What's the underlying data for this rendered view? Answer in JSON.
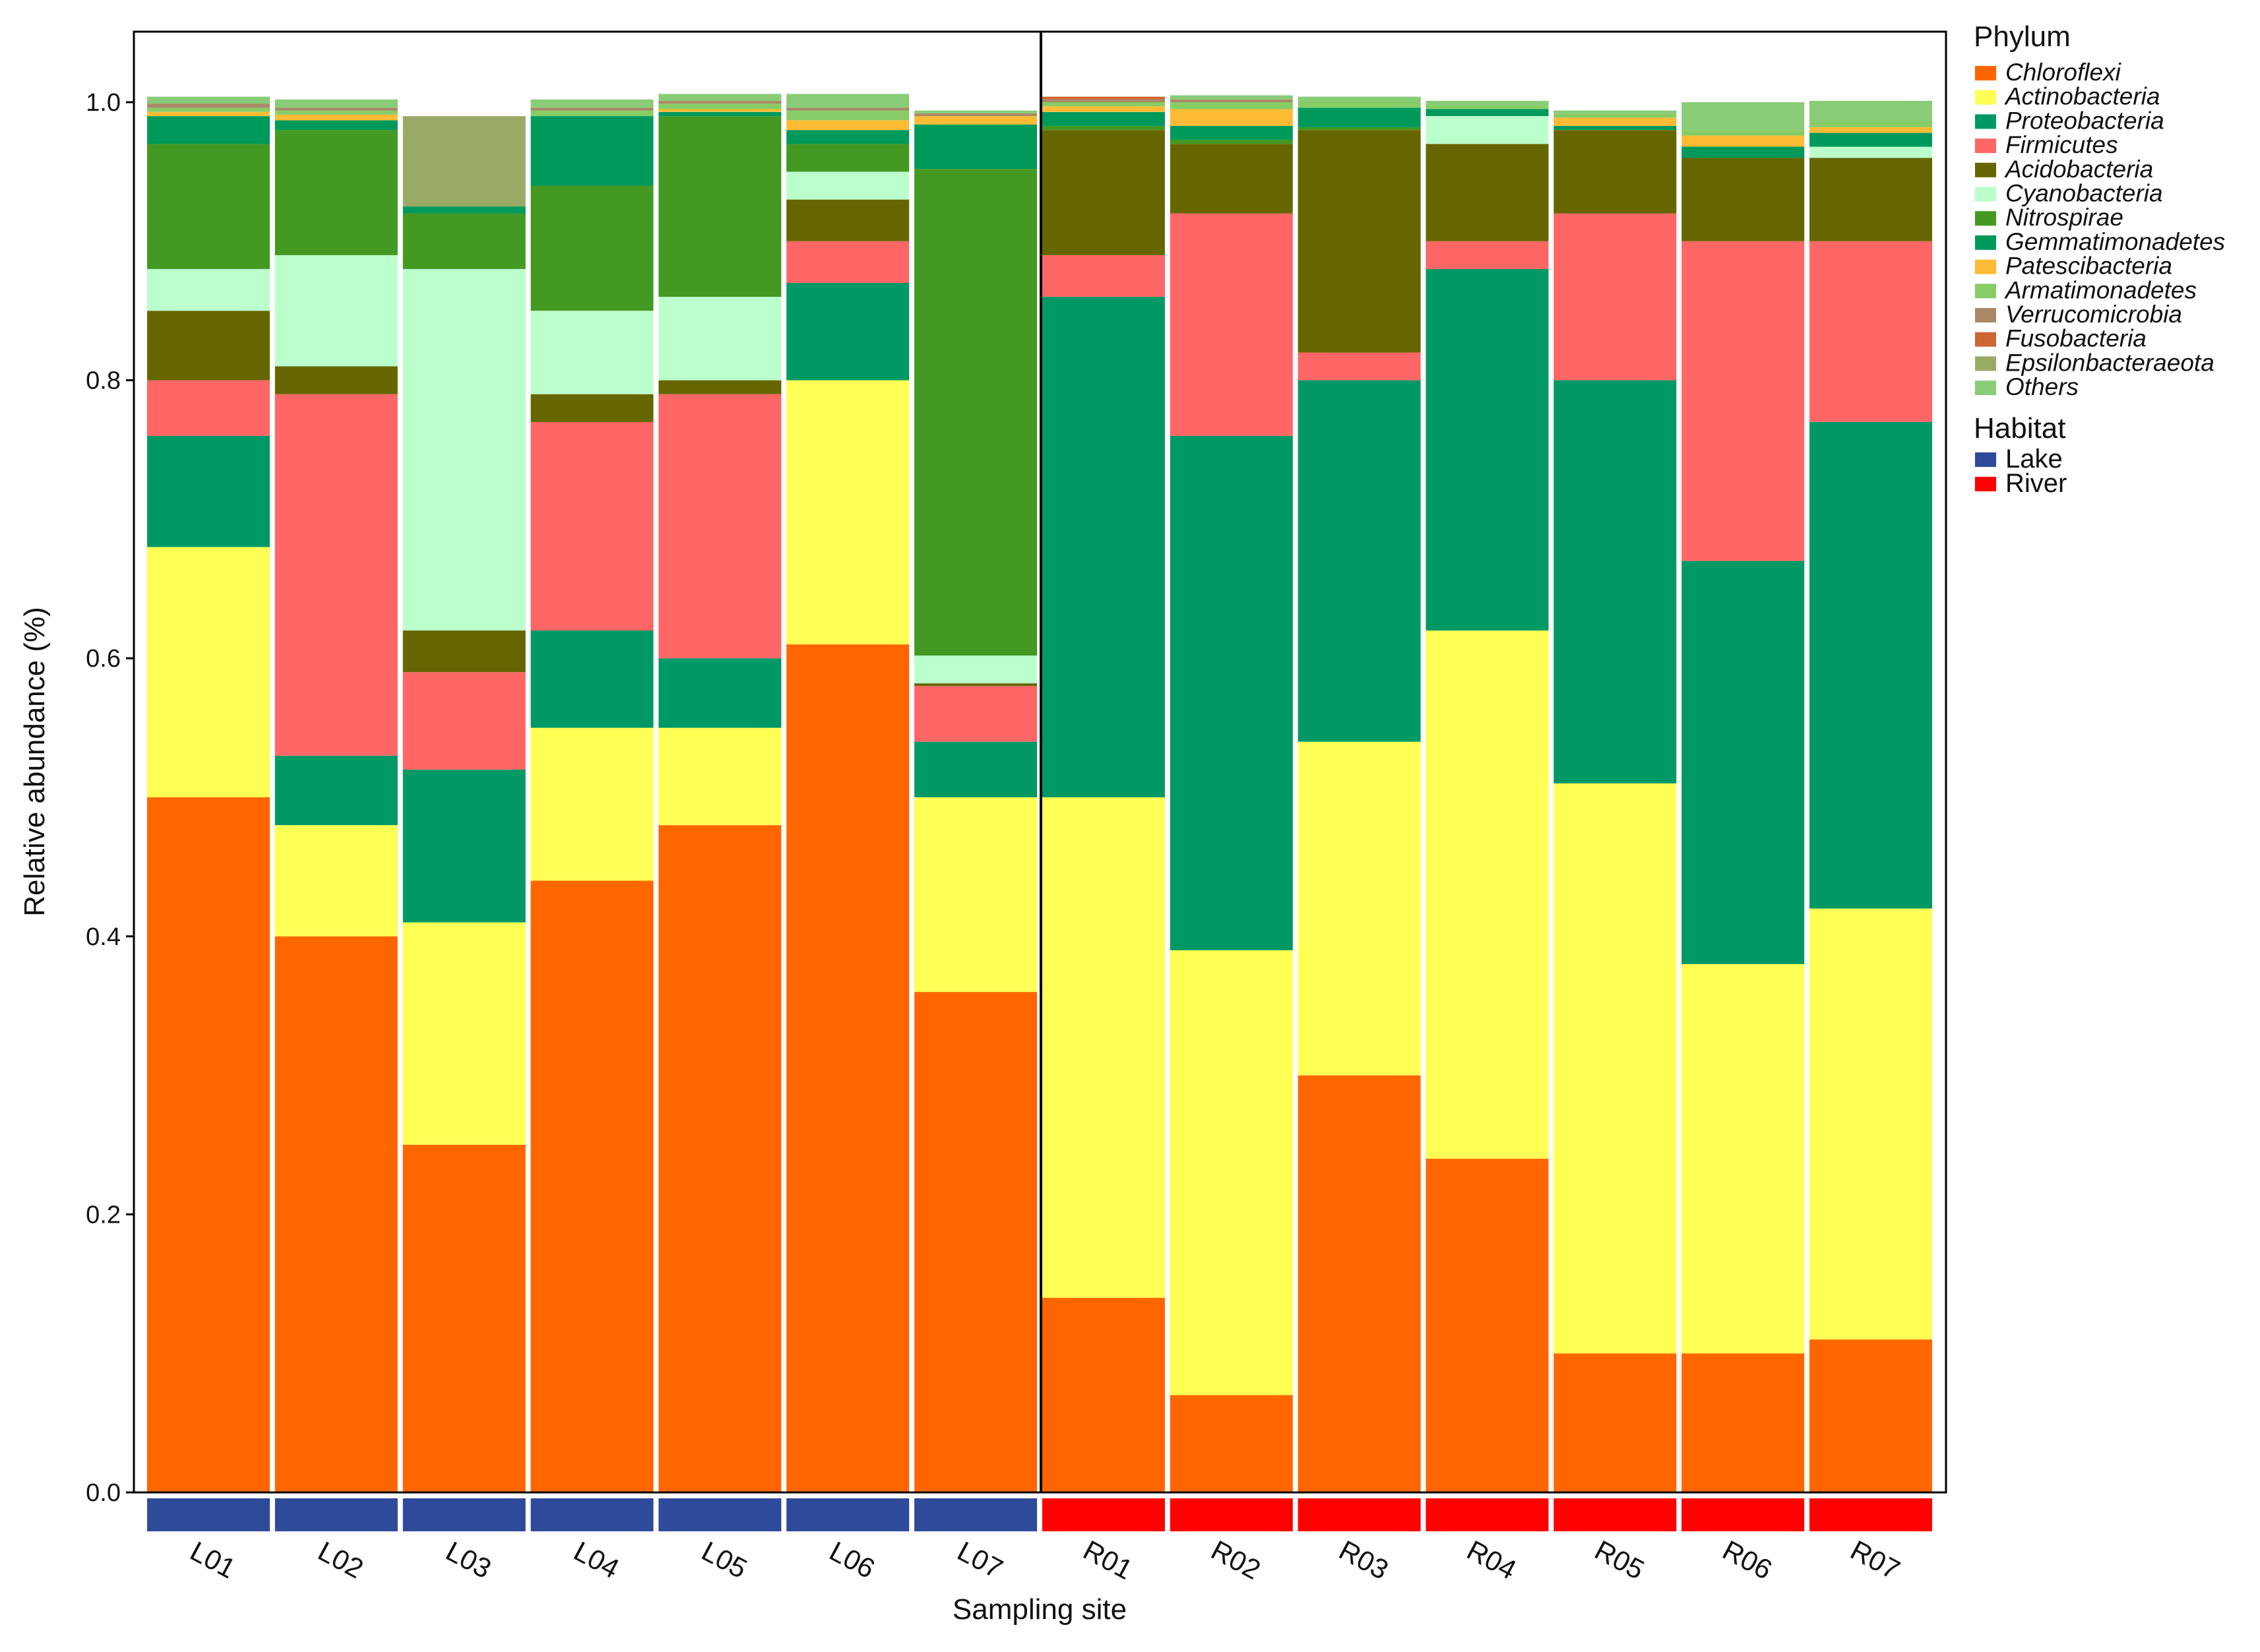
{
  "chart_data": {
    "type": "bar",
    "stacked": true,
    "normalized": true,
    "title": "",
    "xlabel": "Sampling site",
    "ylabel": "Relative abundance (%)",
    "ylim": [
      0,
      1.05
    ],
    "yticks": [
      "0.0",
      "0.2",
      "0.4",
      "0.6",
      "0.8",
      "1.0"
    ],
    "categories": [
      "L01",
      "L02",
      "L03",
      "L04",
      "L05",
      "L06",
      "L07",
      "R01",
      "R02",
      "R03",
      "R04",
      "R05",
      "R06",
      "R07"
    ],
    "habitat": [
      "Lake",
      "Lake",
      "Lake",
      "Lake",
      "Lake",
      "Lake",
      "Lake",
      "River",
      "River",
      "River",
      "River",
      "River",
      "River",
      "River"
    ],
    "series": [
      {
        "name": "Chloroflexi",
        "color": "#FF6600",
        "values": [
          0.5,
          0.4,
          0.25,
          0.44,
          0.48,
          0.61,
          0.36,
          0.14,
          0.07,
          0.3,
          0.24,
          0.1,
          0.1,
          0.11
        ]
      },
      {
        "name": "Actinobacteria",
        "color": "#FFFF55",
        "values": [
          0.18,
          0.08,
          0.16,
          0.11,
          0.07,
          0.19,
          0.14,
          0.36,
          0.32,
          0.24,
          0.38,
          0.41,
          0.28,
          0.31
        ]
      },
      {
        "name": "Proteobacteria",
        "color": "#009966",
        "values": [
          0.08,
          0.05,
          0.11,
          0.07,
          0.05,
          0.07,
          0.04,
          0.36,
          0.37,
          0.26,
          0.26,
          0.29,
          0.29,
          0.35
        ]
      },
      {
        "name": "Firmicutes",
        "color": "#FF6666",
        "values": [
          0.04,
          0.26,
          0.07,
          0.15,
          0.19,
          0.03,
          0.04,
          0.03,
          0.16,
          0.02,
          0.02,
          0.12,
          0.23,
          0.13
        ]
      },
      {
        "name": "Acidobacteria",
        "color": "#666600",
        "values": [
          0.05,
          0.02,
          0.03,
          0.02,
          0.01,
          0.03,
          0.002,
          0.09,
          0.05,
          0.16,
          0.07,
          0.06,
          0.06,
          0.06
        ]
      },
      {
        "name": "Cyanobacteria",
        "color": "#BBFFCC",
        "values": [
          0.03,
          0.08,
          0.26,
          0.06,
          0.06,
          0.02,
          0.02,
          0.0,
          0.0,
          0.0,
          0.02,
          0.0,
          0.0,
          0.008
        ]
      },
      {
        "name": "Nitrospirae",
        "color": "#449922",
        "values": [
          0.09,
          0.09,
          0.04,
          0.09,
          0.13,
          0.02,
          0.35,
          0.003,
          0.003,
          0.002,
          0.0,
          0.0,
          0.0,
          0.0
        ]
      },
      {
        "name": "Gemmatimonadetes",
        "color": "#00995C",
        "values": [
          0.02,
          0.007,
          0.005,
          0.05,
          0.003,
          0.01,
          0.032,
          0.01,
          0.01,
          0.014,
          0.005,
          0.003,
          0.008,
          0.01
        ]
      },
      {
        "name": "Patescibacteria",
        "color": "#FFBB33",
        "values": [
          0.003,
          0.004,
          0.0,
          0.0,
          0.002,
          0.007,
          0.006,
          0.004,
          0.012,
          0.0,
          0.0,
          0.006,
          0.008,
          0.004
        ]
      },
      {
        "name": "Armatimonadetes",
        "color": "#88CC66",
        "values": [
          0.003,
          0.003,
          0.0,
          0.004,
          0.004,
          0.007,
          0.0,
          0.003,
          0.005,
          0.004,
          0.003,
          0.003,
          0.004,
          0.004
        ]
      },
      {
        "name": "Verrucomicrobia",
        "color": "#AA8866",
        "values": [
          0.003,
          0.002,
          0.0,
          0.002,
          0.002,
          0.002,
          0.002,
          0.002,
          0.002,
          0.0,
          0.0,
          0.0,
          0.0,
          0.0
        ]
      },
      {
        "name": "Fusobacteria",
        "color": "#CC6633",
        "values": [
          0.0,
          0.0,
          0.0,
          0.0,
          0.0,
          0.0,
          0.0,
          0.002,
          0.0,
          0.0,
          0.0,
          0.0,
          0.0,
          0.0
        ]
      },
      {
        "name": "Epsilonbacteraeota",
        "color": "#99AA66",
        "values": [
          0.0,
          0.0,
          0.065,
          0.0,
          0.0,
          0.0,
          0.0,
          0.0,
          0.0,
          0.0,
          0.0,
          0.0,
          0.0,
          0.0
        ]
      },
      {
        "name": "Others",
        "color": "#88CC77",
        "values": [
          0.005,
          0.006,
          0.0,
          0.006,
          0.005,
          0.01,
          0.002,
          0.0,
          0.003,
          0.004,
          0.003,
          0.002,
          0.02,
          0.015
        ]
      }
    ],
    "legend": {
      "phylum_title": "Phylum",
      "habitat_title": "Habitat",
      "habitat_items": [
        {
          "name": "Lake",
          "color": "#2E4A9A"
        },
        {
          "name": "River",
          "color": "#FF0000"
        }
      ],
      "placement": "right"
    },
    "divider_between": [
      "L07",
      "R01"
    ]
  }
}
